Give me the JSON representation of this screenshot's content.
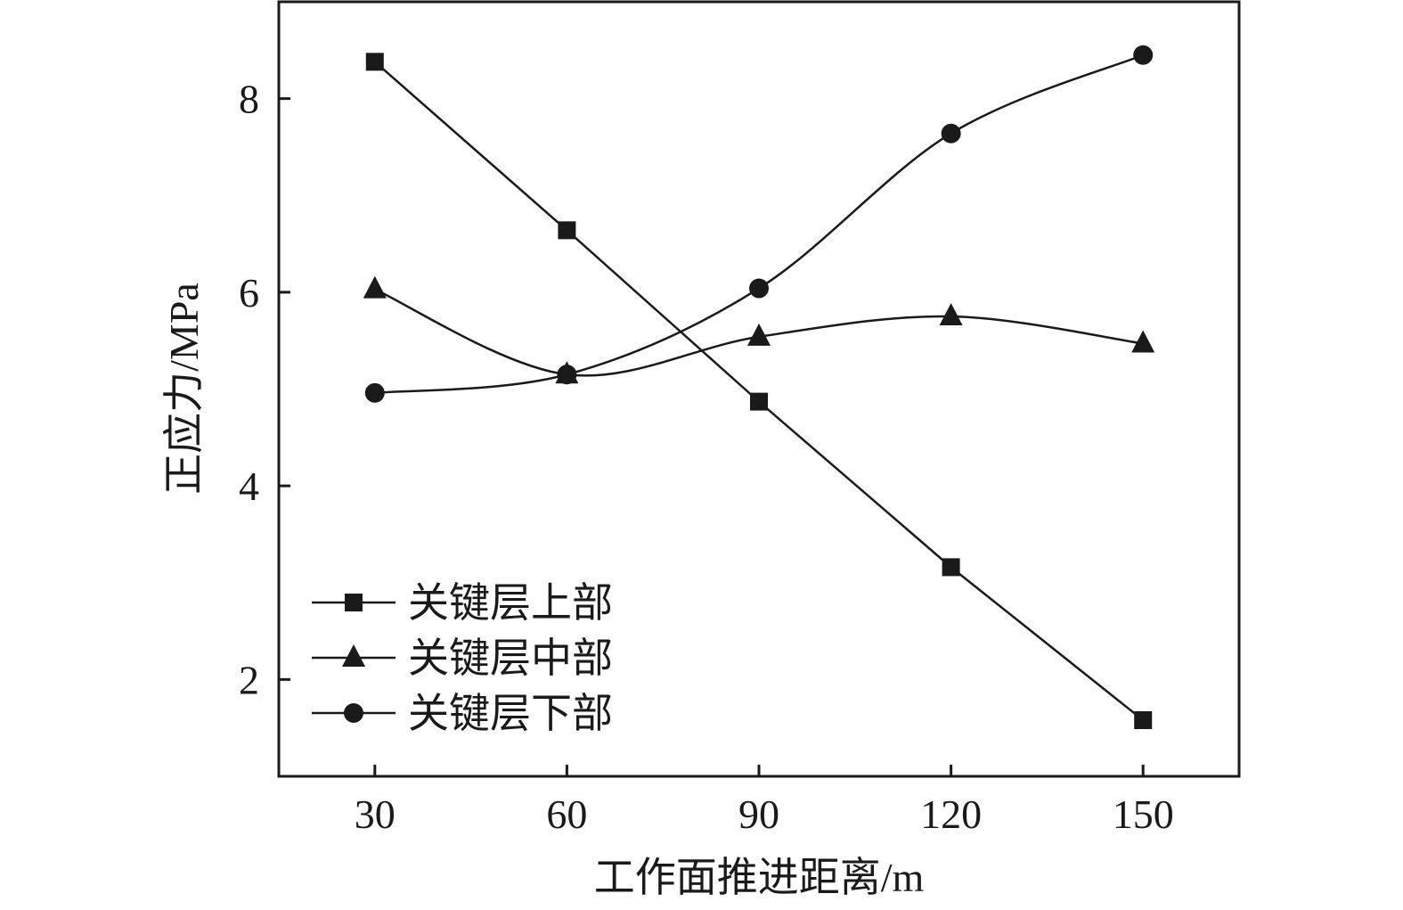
{
  "chart_data": {
    "type": "line",
    "xlabel": "工作面推进距离/m",
    "ylabel": "正应力/MPa",
    "xlim": [
      15,
      165
    ],
    "ylim": [
      1.0,
      9.0
    ],
    "x_ticks": [
      30,
      60,
      90,
      120,
      150
    ],
    "y_ticks": [
      2,
      4,
      6,
      8
    ],
    "grid": false,
    "legend_position": "bottom-left",
    "x": [
      30,
      60,
      90,
      120,
      150
    ],
    "series": [
      {
        "name": "关键层上部",
        "marker": "square",
        "values": [
          8.38,
          6.64,
          4.87,
          3.16,
          1.58
        ]
      },
      {
        "name": "关键层中部",
        "marker": "triangle",
        "values": [
          6.03,
          5.15,
          5.54,
          5.75,
          5.47
        ]
      },
      {
        "name": "关键层下部",
        "marker": "circle",
        "values": [
          4.96,
          5.15,
          6.04,
          7.64,
          8.45
        ]
      }
    ],
    "line_color": "#1a1a1a"
  }
}
